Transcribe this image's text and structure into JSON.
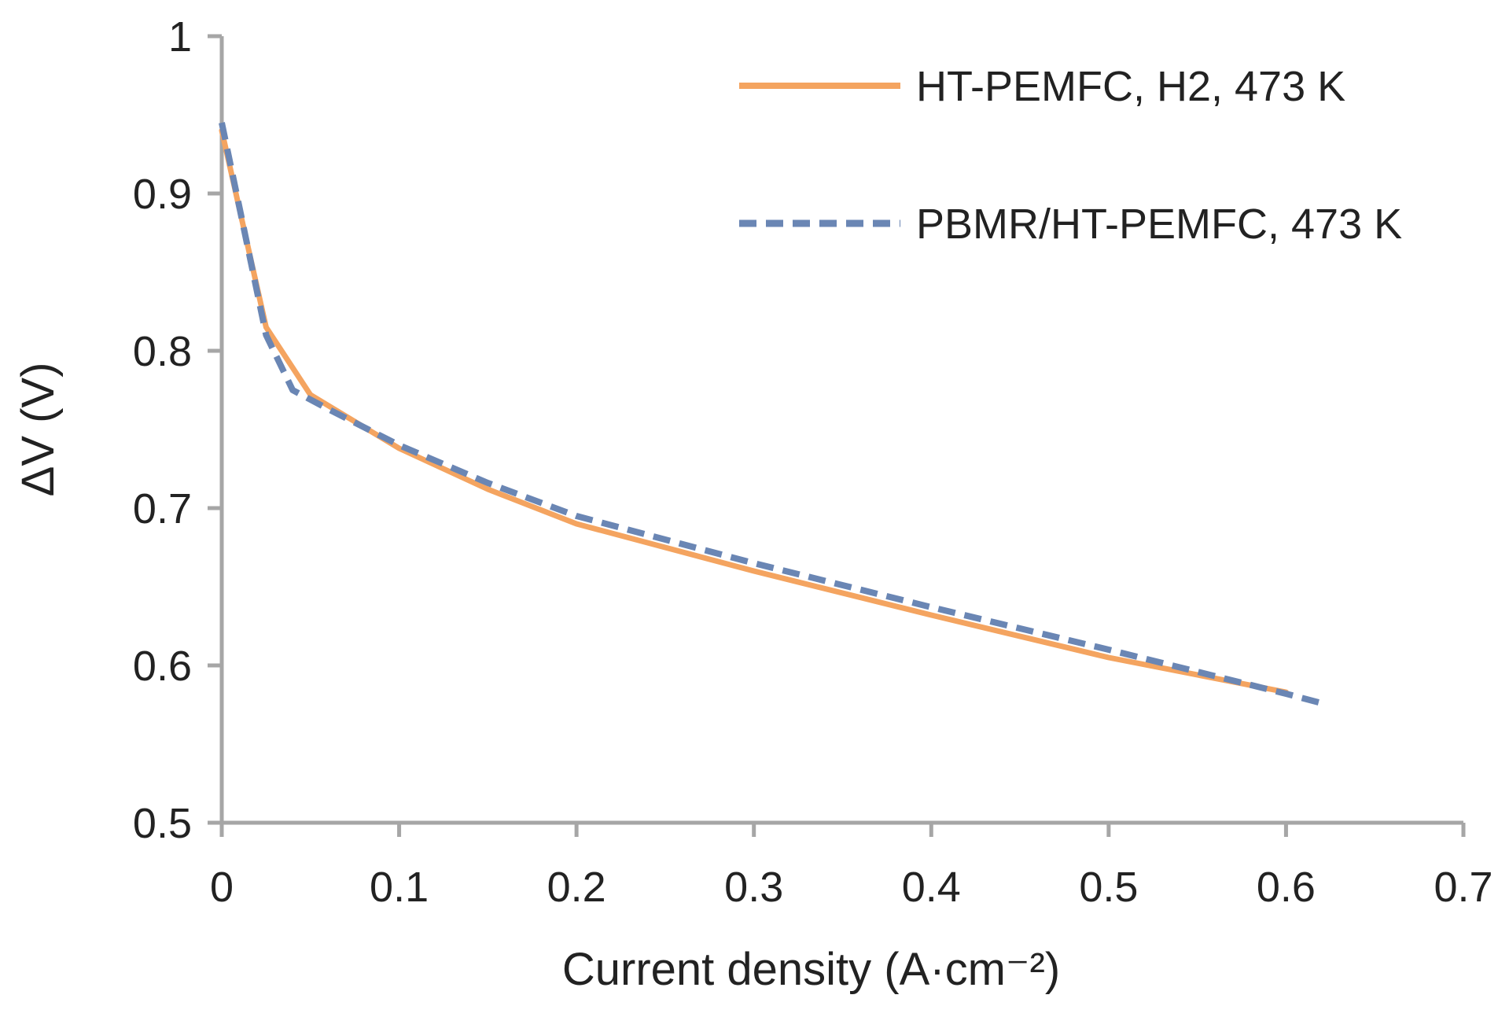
{
  "chart_data": {
    "type": "line",
    "title": "",
    "xlabel": "Current density (A·cm⁻²)",
    "ylabel": "ΔV (V)",
    "xlim": [
      0,
      0.7
    ],
    "ylim": [
      0.5,
      1.0
    ],
    "x_ticks": [
      "0",
      "0.1",
      "0.2",
      "0.3",
      "0.4",
      "0.5",
      "0.6",
      "0.7"
    ],
    "y_ticks": [
      "0.5",
      "0.6",
      "0.7",
      "0.8",
      "0.9",
      "1"
    ],
    "grid": false,
    "legend_position": "top-right",
    "series": [
      {
        "name": "HT-PEMFC, H2, 473 K",
        "color": "#F4A460",
        "style": "solid",
        "x": [
          0,
          0.025,
          0.05,
          0.1,
          0.15,
          0.2,
          0.3,
          0.4,
          0.5,
          0.6
        ],
        "y": [
          0.94,
          0.815,
          0.772,
          0.738,
          0.712,
          0.69,
          0.66,
          0.632,
          0.605,
          0.583
        ]
      },
      {
        "name": "PBMR/HT-PEMFC, 473 K",
        "color": "#6A86B4",
        "style": "dashed",
        "x": [
          0,
          0.025,
          0.04,
          0.06,
          0.1,
          0.15,
          0.2,
          0.3,
          0.4,
          0.5,
          0.6,
          0.62
        ],
        "y": [
          0.945,
          0.81,
          0.775,
          0.763,
          0.74,
          0.716,
          0.695,
          0.665,
          0.637,
          0.61,
          0.582,
          0.576
        ]
      }
    ]
  }
}
